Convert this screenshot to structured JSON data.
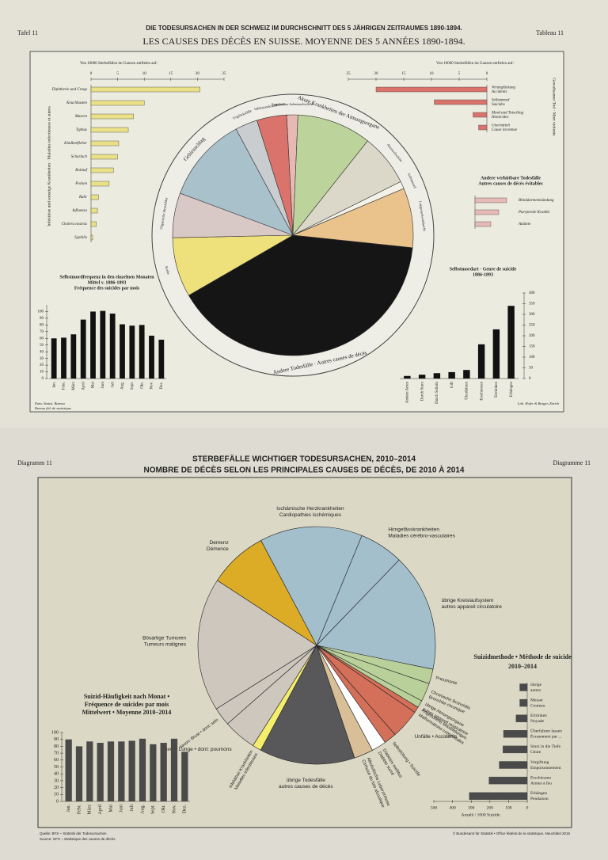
{
  "plate_1890": {
    "left": "Tafel 11",
    "right": "Tableau 11",
    "title_de": "DIE TODESURSACHEN IN DER SCHWEIZ IM DURCHSCHNITT DES 5 JÄHRIGEN ZEITRAUMES 1890-1894.",
    "title_fr": "LES CAUSES DES DÉCÈS EN SUISSE. MOYENNE DES 5 ANNÉES 1890-1894.",
    "credits_left": [
      "Entw. Statist. Bureau",
      "Bureau féd. de statistique"
    ],
    "credits_right": "Lith. Hofer & Burger, Zürich"
  },
  "plate_2014": {
    "left": "Diagramm 11",
    "right": "Diagramme 11",
    "title_de": "STERBEFÄLLE WICHTIGER TODESURSACHEN, 2010–2014",
    "title_fr": "NOMBRE DE DÉCÈS SELON LES PRINCIPALES CAUSES DE DÉCÈS, DE 2010 À 2014",
    "source": [
      "Quelle: BFS – Statistik der Todesursachen",
      "Source: OFS – Statistique des causes de décès"
    ],
    "copyright": "© Bundesamt für Statistik • Office fédéral de la statistique, Neuchâtel 2016"
  },
  "chart_data": [
    {
      "type": "pie",
      "categories": [
        [
          "Angeborene Lebensschwäche"
        ],
        [
          "Akute Krankheiten der Atmungsorgane"
        ],
        [
          "Altersschwäche"
        ],
        [
          "Selbstmord"
        ],
        [
          "Lungenschwindsucht"
        ],
        [
          "Andere Todesfälle · Autres causes de décès"
        ],
        [
          "Krebs"
        ],
        [
          "Organische Herzfehler"
        ],
        [
          "Gehirnschlag"
        ],
        [
          "Unglücksfälle"
        ],
        [
          "Infektionskrankheiten"
        ]
      ],
      "values": [
        1.5,
        10,
        7,
        1,
        8,
        40,
        8,
        6,
        11.5,
        3,
        4
      ],
      "colors": [
        "#e7b9b4",
        "#bcd39b",
        "#dbd8c9",
        "#f3f1e8",
        "#e9c28c",
        "#151515",
        "#eee07a",
        "#d8c8c6",
        "#a9c1cb",
        "#c9cdd0",
        "#d9736b"
      ]
    },
    {
      "type": "barh",
      "title": [
        "Von 10000 Sterbefällen im Ganzen entfielen auf:"
      ],
      "ylabel": "Infektiöse und sonstige Krankheiten · Maladies infectieuses et autres",
      "categories": [
        [
          "Diphtherie und Croup"
        ],
        [
          "Keuchhusten"
        ],
        [
          "Masern"
        ],
        [
          "Typhus"
        ],
        [
          "Kindbettfieber"
        ],
        [
          "Scharlach"
        ],
        [
          "Rotlauf"
        ],
        [
          "Pocken"
        ],
        [
          "Ruhr"
        ],
        [
          "Influenza"
        ],
        [
          "Cholera nostras"
        ],
        [
          "Syphilis"
        ]
      ],
      "values": [
        20.5,
        10,
        8,
        7,
        5.2,
        5,
        4.2,
        3.4,
        1.4,
        1.2,
        1,
        0.3
      ],
      "color": "#e9e088",
      "xlim": [
        0,
        25
      ],
      "xticks": [
        0,
        5,
        10,
        15,
        20,
        25
      ]
    },
    {
      "type": "barh",
      "title": [
        "Von 10000 Sterbefällen im Ganzen entfielen auf:"
      ],
      "ylabel": "Gewaltsamer Tod · Mort violente",
      "categories": [
        [
          "Verunglückung",
          "Accidents"
        ],
        [
          "Selbstmord",
          "Suicides"
        ],
        [
          "Mord und Totschlag",
          "Homicides"
        ],
        [
          "Unermittelt",
          "Cause inconnue"
        ]
      ],
      "values": [
        20,
        9.5,
        2.5,
        1.5
      ],
      "color": "#d9736b",
      "xlim": [
        25,
        0
      ],
      "xticks": [
        25,
        20,
        15,
        10,
        5,
        0
      ]
    },
    {
      "type": "barh",
      "title": [
        "Andere verhütbare Todesfälle",
        "Autres causes de décès évitables"
      ],
      "categories": [
        [
          "Blinddarmentzündung"
        ],
        [
          "Puerperale Krankh."
        ],
        [
          "Anämie"
        ]
      ],
      "values": [
        8,
        6,
        4
      ],
      "color": "#e7b9b4",
      "xlim": [
        0,
        10
      ]
    },
    {
      "type": "bar",
      "title": [
        "Selbstmordfrequenz in den einzelnen Monaten",
        "Mittel v. 1886-1893",
        "Fréquence des suicides par mois"
      ],
      "categories": [
        "Jan.",
        "Febr.",
        "März",
        "April",
        "Mai",
        "Juni",
        "Juli",
        "Aug.",
        "Sept.",
        "Okt.",
        "Nov.",
        "Dez."
      ],
      "values": [
        60,
        61,
        66,
        88,
        100,
        101,
        97,
        81,
        79,
        80,
        64,
        58
      ],
      "color": "#111111",
      "ylim": [
        0,
        110
      ],
      "yticks": [
        0,
        10,
        20,
        30,
        40,
        50,
        60,
        70,
        80,
        90,
        100
      ]
    },
    {
      "type": "bar",
      "title": [
        "Selbstmordart · Genre de suicide",
        "1886-1893"
      ],
      "categories": [
        "Andere Arten",
        "Durch Sturz",
        "Durch Schnitt",
        "Gift",
        "Überfahren",
        "Erschiessen",
        "Ertränken",
        "Erhängen"
      ],
      "values": [
        12,
        18,
        25,
        30,
        40,
        160,
        230,
        340
      ],
      "color": "#111111",
      "ylim": [
        0,
        400
      ],
      "yticks": [
        0,
        50,
        100,
        150,
        200,
        250,
        300,
        350,
        400
      ]
    },
    {
      "type": "pie",
      "categories": [
        [
          "Ischämische Herzkrankheiten",
          "Cardiopathies ischémiques"
        ],
        [
          "Hirngefässkrankheiten",
          "Maladies cérébro-vasculaires"
        ],
        [
          "übrige Kreislaufsystem",
          "autres appareil circulatoire"
        ],
        [
          "Pneumonie"
        ],
        [
          "Chronische Bronchitis",
          "Bronchite chronique"
        ],
        [
          "übrige Atmungsorgane",
          "autres appareil respiratoire"
        ],
        [
          "Angeborene Missbildungen",
          "Malformations congénitales"
        ],
        [
          "Unfälle • Accidents"
        ],
        [
          "Selbsttötung • Suicide"
        ],
        [
          "Diabetes mellitus",
          "Diabète sucré"
        ],
        [
          "Alkoholische Leberzirrhose",
          "Cirrhose du foie alcoolique"
        ],
        [
          "übrige Todesfälle",
          "autres causes de décès"
        ],
        [
          "Infektiöse Krankheiten",
          "Maladies infectieuses"
        ],
        [
          "davon: Lunge • dont: poumons"
        ],
        [
          "davon: Brust • dont: sein"
        ],
        [
          "Bösartige Tumoren",
          "Tumeurs malignes"
        ],
        [
          "Demenz",
          "Démence"
        ]
      ],
      "values": [
        14,
        6,
        16,
        2,
        2.5,
        1,
        0.8,
        4,
        1.7,
        2,
        2.6,
        13,
        1.2,
        4.5,
        2.5,
        18.2,
        8
      ],
      "colors": [
        "#a3bfcc",
        "#a3bfcc",
        "#a3bfcc",
        "#b9d09b",
        "#b9d09b",
        "#b9d09b",
        "#d4705a",
        "#d4705a",
        "#d4705a",
        "#ffffff",
        "#d9bf98",
        "#58585a",
        "#f4ee6c",
        "#cdc7bd",
        "#cdc7bd",
        "#cdc7bd",
        "#dcac26"
      ]
    },
    {
      "type": "bar",
      "title": [
        "Suizid-Häufigkeit nach Monat •",
        "Fréquence de suicides par mois",
        "Mittelwert • Moyenne 2010–2014"
      ],
      "categories": [
        "Jan.",
        "Febr.",
        "März",
        "April",
        "Mai",
        "Juni",
        "Juli",
        "Aug.",
        "Sept.",
        "Okt.",
        "Nov.",
        "Dez."
      ],
      "values": [
        90,
        80,
        87,
        85,
        87,
        87,
        88,
        91,
        83,
        85,
        91,
        72
      ],
      "color": "#4a4a4a",
      "ylim": [
        0,
        100
      ],
      "yticks": [
        0,
        10,
        20,
        30,
        40,
        50,
        60,
        70,
        80,
        90,
        100
      ]
    },
    {
      "type": "barh",
      "title": [
        "Suizidmethode • Méthode de suicide",
        "2010–2014"
      ],
      "xlabel": "Anzahl / 1000 Suizide",
      "categories": [
        [
          "übrige",
          "autres"
        ],
        [
          "Messer",
          "Couteau"
        ],
        [
          "Ertrinken",
          "Noyade"
        ],
        [
          "Überfahren lassen",
          "Écrasement par ..."
        ],
        [
          "Sturz in die Tiefe",
          "Chute"
        ],
        [
          "Vergiftung",
          "Empoisonnement"
        ],
        [
          "Erschiessen",
          "Armes à feu"
        ],
        [
          "Erhängen",
          "Pendaison"
        ]
      ],
      "values": [
        40,
        40,
        60,
        127,
        130,
        150,
        205,
        310
      ],
      "color": "#4a4a4a",
      "xlim": [
        500,
        0
      ],
      "xticks": [
        500,
        400,
        300,
        200,
        100,
        0
      ]
    }
  ]
}
